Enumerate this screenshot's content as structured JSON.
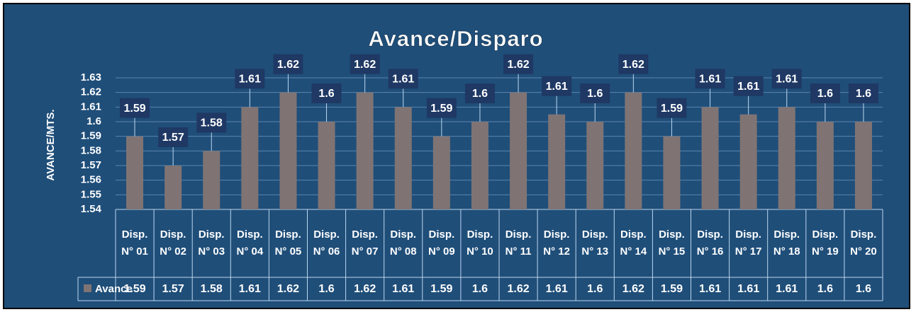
{
  "chart_data": {
    "type": "bar",
    "title": "Avance/Disparo",
    "y_axis_label": "AVANCE/MTS.",
    "categories": [
      "Disp. N° 01",
      "Disp. N° 02",
      "Disp. N° 03",
      "Disp. N° 04",
      "Disp. N° 05",
      "Disp. N° 06",
      "Disp. N° 07",
      "Disp. N° 08",
      "Disp. N° 09",
      "Disp. N° 10",
      "Disp. N° 11",
      "Disp. N° 12",
      "Disp. N° 13",
      "Disp. N° 14",
      "Disp. N° 15",
      "Disp. N° 16",
      "Disp. N° 17",
      "Disp. N° 18",
      "Disp. N° 19",
      "Disp. N° 20"
    ],
    "series": [
      {
        "name": "Avance",
        "color": "#7f7473",
        "values": [
          1.59,
          1.57,
          1.58,
          1.61,
          1.62,
          1.6,
          1.62,
          1.61,
          1.59,
          1.6,
          1.62,
          1.605,
          1.6,
          1.62,
          1.59,
          1.61,
          1.605,
          1.61,
          1.6,
          1.6
        ],
        "value_labels": [
          "1.59",
          "1.57",
          "1.58",
          "1.61",
          "1.62",
          "1.6",
          "1.62",
          "1.61",
          "1.59",
          "1.6",
          "1.62",
          "1.61",
          "1.6",
          "1.62",
          "1.59",
          "1.61",
          "1.61",
          "1.61",
          "1.6",
          "1.6"
        ]
      }
    ],
    "ylim": [
      1.54,
      1.63
    ],
    "yticks": [
      1.54,
      1.55,
      1.56,
      1.57,
      1.58,
      1.59,
      1.6,
      1.61,
      1.62,
      1.63
    ],
    "grid": true
  }
}
